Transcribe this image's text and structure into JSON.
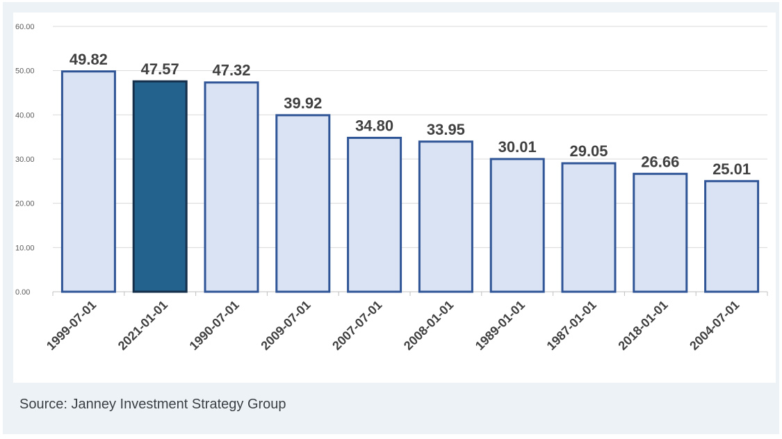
{
  "caption": "Source: Janney Investment Strategy Group",
  "colors": {
    "bar_fill": "#dae3f3",
    "bar_stroke": "#2f5597",
    "highlight_fill": "#24628e",
    "highlight_stroke": "#152f4a",
    "gridline": "#d9d9d9",
    "label_text": "#404040",
    "tick_text": "#595959"
  },
  "chart_data": {
    "type": "bar",
    "title": "",
    "xlabel": "",
    "ylabel": "",
    "categories": [
      "1999-07-01",
      "2021-01-01",
      "1990-07-01",
      "2009-07-01",
      "2007-07-01",
      "2008-01-01",
      "1989-01-01",
      "1987-01-01",
      "2018-01-01",
      "2004-07-01"
    ],
    "values": [
      49.82,
      47.57,
      47.32,
      39.92,
      34.8,
      33.95,
      30.01,
      29.05,
      26.66,
      25.01
    ],
    "data_labels": [
      "49.82",
      "47.57",
      "47.32",
      "39.92",
      "34.80",
      "33.95",
      "30.01",
      "29.05",
      "26.66",
      "25.01"
    ],
    "highlighted_category": "2021-01-01",
    "ylim": [
      0,
      60
    ],
    "y_ticks": [
      "0.00",
      "10.00",
      "20.00",
      "30.00",
      "40.00",
      "50.00",
      "60.00"
    ],
    "grid": true,
    "legend": "none"
  }
}
